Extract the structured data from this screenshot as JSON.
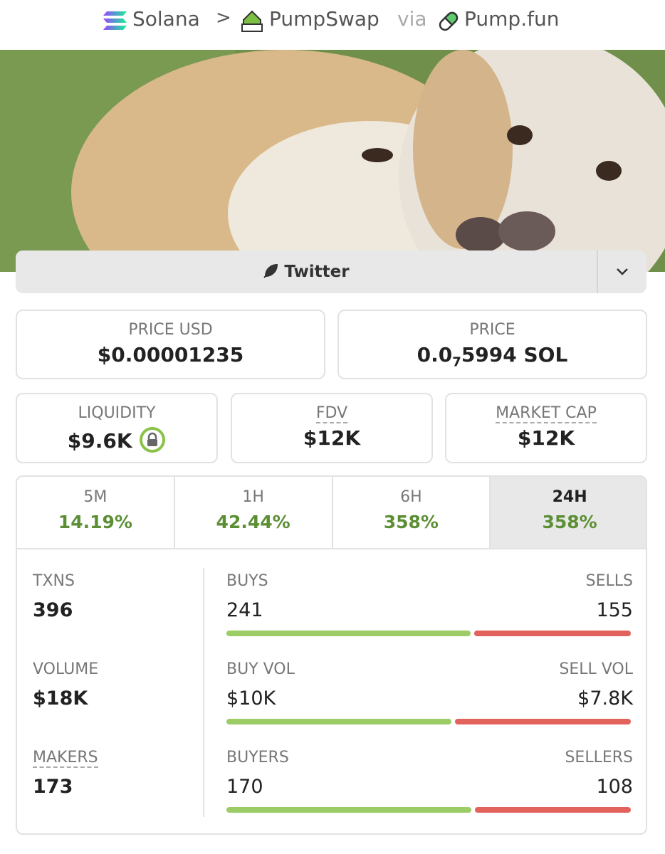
{
  "breadcrumb": {
    "chain": "Solana",
    "dex": "PumpSwap",
    "via": "via",
    "platform": "Pump.fun"
  },
  "social": {
    "label": "Twitter"
  },
  "price_usd": {
    "label": "PRICE USD",
    "value": "$0.00001235"
  },
  "price": {
    "label": "PRICE",
    "value_parts": [
      "0.0",
      "7",
      "5994 SOL"
    ]
  },
  "metrics": [
    {
      "label": "LIQUIDITY",
      "value": "$9.6K"
    },
    {
      "label": "FDV",
      "value": "$12K"
    },
    {
      "label": "MARKET CAP",
      "value": "$12K"
    }
  ],
  "timeframes": [
    {
      "label": "5M",
      "change": "14.19%"
    },
    {
      "label": "1H",
      "change": "42.44%"
    },
    {
      "label": "6H",
      "change": "358%"
    },
    {
      "label": "24H",
      "change": "358%"
    }
  ],
  "selected_timeframe": 3,
  "stats": [
    {
      "label": "TXNS",
      "value": 396,
      "left_label": "BUYS",
      "left_value": 241,
      "right_label": "SELLS",
      "right_value": 155
    },
    {
      "label": "VOLUME",
      "value": "$18K",
      "left_label": "BUY VOL",
      "left_value": {
        "value": 10000,
        "label": "$10K"
      },
      "right_label": "SELL VOL",
      "right_value": {
        "value": 7800,
        "label": "$7.8K"
      }
    },
    {
      "label": "MAKERS",
      "value": 173,
      "left_label": "BUYERS",
      "left_value": 170,
      "right_label": "SELLERS",
      "right_value": 108
    }
  ]
}
